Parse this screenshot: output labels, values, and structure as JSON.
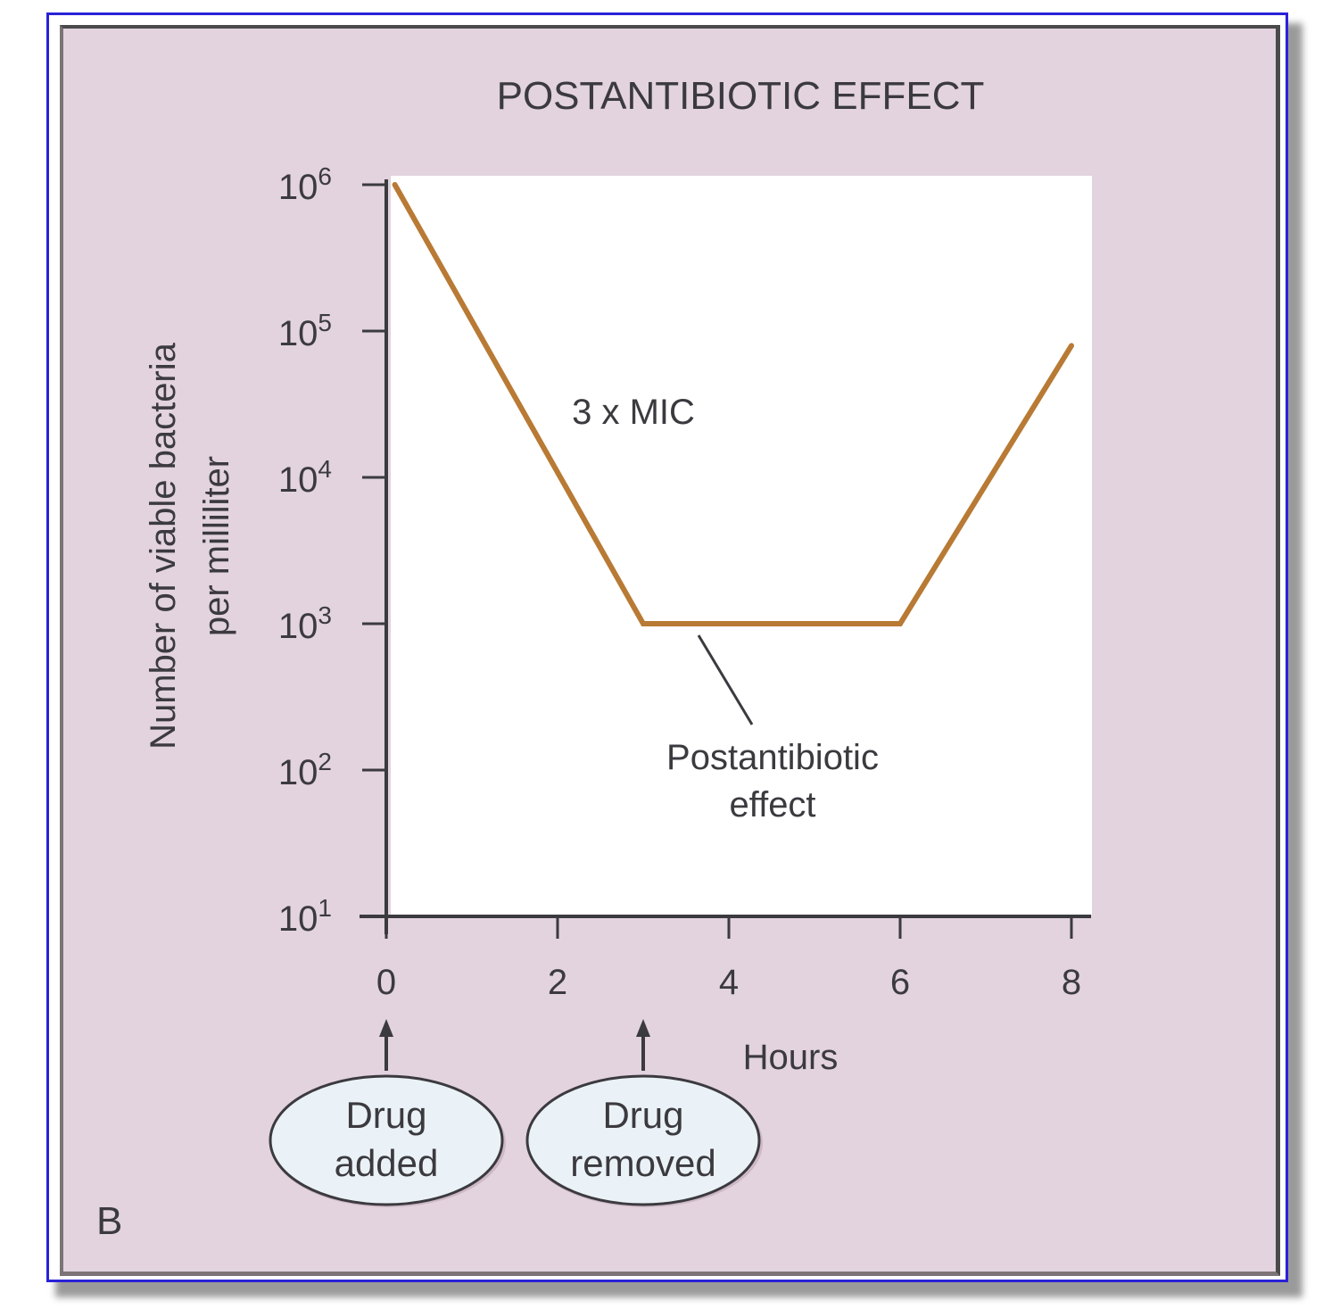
{
  "figure": {
    "panel_label": "B",
    "colors": {
      "panel_background": "#e2d3de",
      "plot_background": "#ffffff",
      "frame_border": "#2a22d8",
      "curve": "#b87a34",
      "axis": "#3b3a3f",
      "callout_fill": "#eaf2f7"
    }
  },
  "annotations": {
    "curve_label": "3 x MIC",
    "callout_label_line1": "Postantibiotic",
    "callout_label_line2": "effect",
    "events": [
      {
        "hour": 0,
        "line1": "Drug",
        "line2": "added"
      },
      {
        "hour": 3,
        "line1": "Drug",
        "line2": "removed"
      }
    ]
  },
  "chart_data": {
    "type": "line",
    "title": "POSTANTIBIOTIC EFFECT",
    "xlabel": "Hours",
    "ylabel_line1": "Number of viable bacteria",
    "ylabel_line2": "per milliliter",
    "y_scale": "log",
    "xlim": [
      0,
      8
    ],
    "ylim_log10": [
      1,
      6
    ],
    "x_ticks": [
      0,
      2,
      4,
      6,
      8
    ],
    "x_tick_labels": [
      "0",
      "2",
      "4",
      "6",
      "8"
    ],
    "y_ticks_log10": [
      6,
      5,
      4,
      3,
      2,
      1
    ],
    "y_tick_labels": [
      {
        "base": "10",
        "exp": "6"
      },
      {
        "base": "10",
        "exp": "5"
      },
      {
        "base": "10",
        "exp": "4"
      },
      {
        "base": "10",
        "exp": "3"
      },
      {
        "base": "10",
        "exp": "2"
      },
      {
        "base": "10",
        "exp": "1"
      }
    ],
    "grid": false,
    "series": [
      {
        "name": "3 x MIC",
        "points": [
          {
            "x": 0.1,
            "log10_y": 6.0
          },
          {
            "x": 3.0,
            "log10_y": 3.0
          },
          {
            "x": 6.0,
            "log10_y": 3.0
          },
          {
            "x": 8.0,
            "log10_y": 4.9
          }
        ]
      }
    ]
  }
}
